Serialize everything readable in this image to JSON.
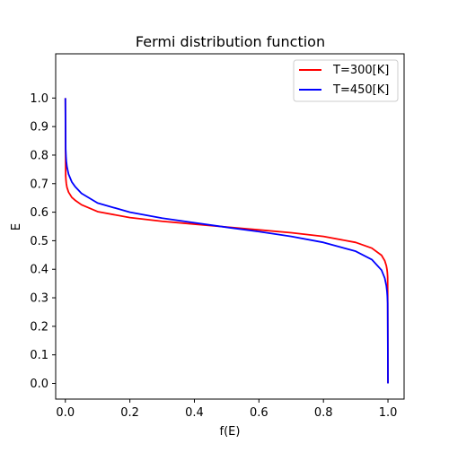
{
  "chart_data": {
    "type": "line",
    "title": "Fermi distribution function",
    "xlabel": "f(E)",
    "ylabel": "E",
    "xlim": [
      -0.03,
      1.05
    ],
    "ylim": [
      -0.055,
      1.155
    ],
    "xticks": [
      "0.0",
      "0.2",
      "0.4",
      "0.6",
      "0.8",
      "1.0"
    ],
    "yticks": [
      "0.0",
      "0.1",
      "0.2",
      "0.3",
      "0.4",
      "0.5",
      "0.6",
      "0.7",
      "0.8",
      "0.9",
      "1.0"
    ],
    "xtick_values": [
      0.0,
      0.2,
      0.4,
      0.6,
      0.8,
      1.0
    ],
    "ytick_values": [
      0.0,
      0.1,
      0.2,
      0.3,
      0.4,
      0.5,
      0.6,
      0.7,
      0.8,
      0.9,
      1.0
    ],
    "grid": false,
    "legend_position": "upper right",
    "series": [
      {
        "name": "T=300[K]",
        "color": "#ff0000",
        "x": [
          1.0,
          0.999,
          0.998,
          0.997,
          0.995,
          0.99,
          0.98,
          0.95,
          0.9,
          0.8,
          0.7,
          0.6,
          0.5,
          0.4,
          0.3,
          0.2,
          0.1,
          0.05,
          0.03,
          0.02,
          0.01,
          0.005,
          0.003,
          0.002,
          0.001,
          0.0
        ],
        "y": [
          0.0,
          0.372,
          0.389,
          0.399,
          0.412,
          0.43,
          0.449,
          0.474,
          0.494,
          0.515,
          0.528,
          0.538,
          0.548,
          0.558,
          0.568,
          0.581,
          0.602,
          0.626,
          0.642,
          0.652,
          0.67,
          0.687,
          0.7,
          0.711,
          0.728,
          1.0
        ]
      },
      {
        "name": "T=450[K]",
        "color": "#0000ff",
        "x": [
          1.0,
          0.999,
          0.998,
          0.997,
          0.995,
          0.99,
          0.98,
          0.95,
          0.9,
          0.8,
          0.7,
          0.6,
          0.5,
          0.4,
          0.3,
          0.2,
          0.1,
          0.05,
          0.03,
          0.02,
          0.01,
          0.005,
          0.003,
          0.002,
          0.001,
          0.0
        ],
        "y": [
          0.0,
          0.281,
          0.307,
          0.322,
          0.342,
          0.369,
          0.397,
          0.434,
          0.463,
          0.494,
          0.515,
          0.532,
          0.547,
          0.563,
          0.579,
          0.6,
          0.632,
          0.666,
          0.69,
          0.706,
          0.733,
          0.759,
          0.778,
          0.795,
          0.821,
          1.0
        ]
      }
    ]
  }
}
